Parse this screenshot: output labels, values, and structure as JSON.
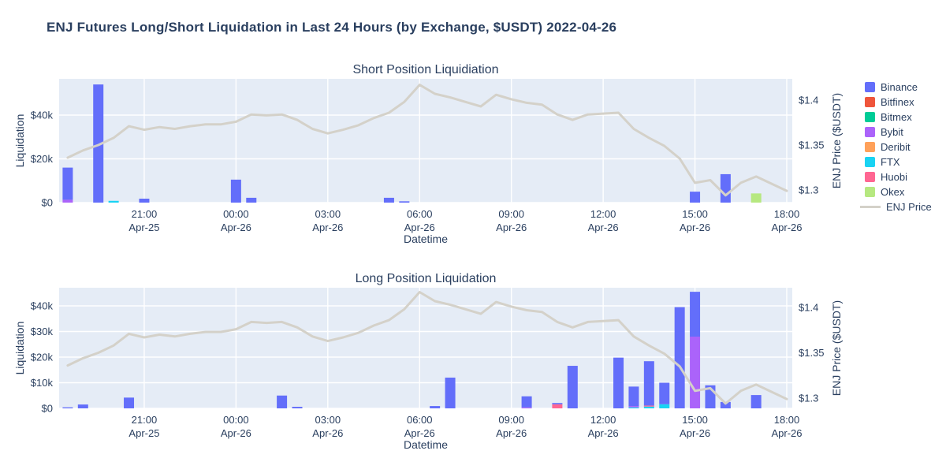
{
  "title": "ENJ Futures Long/Short Liquidation in Last 24 Hours (by Exchange, $USDT) 2022-04-26",
  "colors": {
    "background": "#ffffff",
    "plot_bg": "#E5ECF6",
    "grid": "#ffffff",
    "text": "#2a3f5f",
    "price_line": "#D4D1C9",
    "exchanges": {
      "Binance": "#636EFA",
      "Bitfinex": "#EF553B",
      "Bitmex": "#00CC96",
      "Bybit": "#AB63FA",
      "Deribit": "#FFA15A",
      "FTX": "#19D3F3",
      "Huobi": "#FF6692",
      "Okex": "#B6E880"
    }
  },
  "legend": {
    "position": "right",
    "entries": [
      {
        "label": "Binance",
        "color": "#636EFA",
        "marker": "square"
      },
      {
        "label": "Bitfinex",
        "color": "#EF553B",
        "marker": "square"
      },
      {
        "label": "Bitmex",
        "color": "#00CC96",
        "marker": "square"
      },
      {
        "label": "Bybit",
        "color": "#AB63FA",
        "marker": "square"
      },
      {
        "label": "Deribit",
        "color": "#FFA15A",
        "marker": "square"
      },
      {
        "label": "FTX",
        "color": "#19D3F3",
        "marker": "square"
      },
      {
        "label": "Huobi",
        "color": "#FF6692",
        "marker": "square"
      },
      {
        "label": "Okex",
        "color": "#B6E880",
        "marker": "square"
      },
      {
        "label": "ENJ Price",
        "color": "#D4D1C9",
        "marker": "line"
      }
    ]
  },
  "x_axis": {
    "title": "Datetime",
    "ticks": [
      {
        "time": "21:00",
        "date": "Apr-25"
      },
      {
        "time": "00:00",
        "date": "Apr-26"
      },
      {
        "time": "03:00",
        "date": "Apr-26"
      },
      {
        "time": "06:00",
        "date": "Apr-26"
      },
      {
        "time": "09:00",
        "date": "Apr-26"
      },
      {
        "time": "12:00",
        "date": "Apr-26"
      },
      {
        "time": "15:00",
        "date": "Apr-26"
      },
      {
        "time": "18:00",
        "date": "Apr-26"
      }
    ]
  },
  "y_right": {
    "title": "ENJ Price ($USDT)",
    "ticks": [
      {
        "label": "$1.3",
        "value": 1.3
      },
      {
        "label": "$1.35",
        "value": 1.35
      },
      {
        "label": "$1.4",
        "value": 1.4
      }
    ]
  },
  "chart_data": {
    "type": "stacked-bar+line",
    "date_shown": "2022-04-26",
    "units": "value_k = thousands of USDT liquidated per 30-min interval; p = ENJ price in USDT",
    "x_range": [
      "Apr-25 18:00",
      "Apr-26 18:00"
    ],
    "price_line": {
      "name": "ENJ Price",
      "points": [
        {
          "t": "18:30",
          "d": "Apr-25",
          "p": 1.336
        },
        {
          "t": "19:00",
          "d": "Apr-25",
          "p": 1.344
        },
        {
          "t": "19:30",
          "d": "Apr-25",
          "p": 1.35
        },
        {
          "t": "20:00",
          "d": "Apr-25",
          "p": 1.358
        },
        {
          "t": "20:30",
          "d": "Apr-25",
          "p": 1.371
        },
        {
          "t": "21:00",
          "d": "Apr-25",
          "p": 1.367
        },
        {
          "t": "21:30",
          "d": "Apr-25",
          "p": 1.37
        },
        {
          "t": "22:00",
          "d": "Apr-25",
          "p": 1.368
        },
        {
          "t": "22:30",
          "d": "Apr-25",
          "p": 1.371
        },
        {
          "t": "23:00",
          "d": "Apr-25",
          "p": 1.373
        },
        {
          "t": "23:30",
          "d": "Apr-25",
          "p": 1.373
        },
        {
          "t": "00:00",
          "d": "Apr-26",
          "p": 1.376
        },
        {
          "t": "00:30",
          "d": "Apr-26",
          "p": 1.384
        },
        {
          "t": "01:00",
          "d": "Apr-26",
          "p": 1.383
        },
        {
          "t": "01:30",
          "d": "Apr-26",
          "p": 1.384
        },
        {
          "t": "02:00",
          "d": "Apr-26",
          "p": 1.378
        },
        {
          "t": "02:30",
          "d": "Apr-26",
          "p": 1.368
        },
        {
          "t": "03:00",
          "d": "Apr-26",
          "p": 1.363
        },
        {
          "t": "03:30",
          "d": "Apr-26",
          "p": 1.367
        },
        {
          "t": "04:00",
          "d": "Apr-26",
          "p": 1.372
        },
        {
          "t": "04:30",
          "d": "Apr-26",
          "p": 1.38
        },
        {
          "t": "05:00",
          "d": "Apr-26",
          "p": 1.386
        },
        {
          "t": "05:30",
          "d": "Apr-26",
          "p": 1.398
        },
        {
          "t": "06:00",
          "d": "Apr-26",
          "p": 1.417
        },
        {
          "t": "06:30",
          "d": "Apr-26",
          "p": 1.407
        },
        {
          "t": "07:00",
          "d": "Apr-26",
          "p": 1.403
        },
        {
          "t": "07:30",
          "d": "Apr-26",
          "p": 1.398
        },
        {
          "t": "08:00",
          "d": "Apr-26",
          "p": 1.393
        },
        {
          "t": "08:30",
          "d": "Apr-26",
          "p": 1.406
        },
        {
          "t": "09:00",
          "d": "Apr-26",
          "p": 1.401
        },
        {
          "t": "09:30",
          "d": "Apr-26",
          "p": 1.397
        },
        {
          "t": "10:00",
          "d": "Apr-26",
          "p": 1.395
        },
        {
          "t": "10:30",
          "d": "Apr-26",
          "p": 1.384
        },
        {
          "t": "11:00",
          "d": "Apr-26",
          "p": 1.378
        },
        {
          "t": "11:30",
          "d": "Apr-26",
          "p": 1.384
        },
        {
          "t": "12:00",
          "d": "Apr-26",
          "p": 1.385
        },
        {
          "t": "12:30",
          "d": "Apr-26",
          "p": 1.386
        },
        {
          "t": "13:00",
          "d": "Apr-26",
          "p": 1.368
        },
        {
          "t": "13:30",
          "d": "Apr-26",
          "p": 1.358
        },
        {
          "t": "14:00",
          "d": "Apr-26",
          "p": 1.349
        },
        {
          "t": "14:30",
          "d": "Apr-26",
          "p": 1.335
        },
        {
          "t": "15:00",
          "d": "Apr-26",
          "p": 1.308
        },
        {
          "t": "15:30",
          "d": "Apr-26",
          "p": 1.311
        },
        {
          "t": "16:00",
          "d": "Apr-26",
          "p": 1.294
        },
        {
          "t": "16:30",
          "d": "Apr-26",
          "p": 1.308
        },
        {
          "t": "17:00",
          "d": "Apr-26",
          "p": 1.315
        },
        {
          "t": "17:30",
          "d": "Apr-26",
          "p": 1.307
        },
        {
          "t": "18:00",
          "d": "Apr-26",
          "p": 1.299
        }
      ]
    },
    "subplots": [
      {
        "id": "short",
        "title": "Short Position Liquidiation",
        "y_left": {
          "title": "Liquidation",
          "ticks": [
            {
              "label": "$0",
              "value": 0
            },
            {
              "label": "$20k",
              "value": 20
            },
            {
              "label": "$40k",
              "value": 40
            }
          ],
          "max_k": 56.6
        },
        "price_range": [
          1.286,
          1.424
        ],
        "bars": [
          {
            "time": "18:30",
            "date": "Apr-25",
            "segments": [
              {
                "exchange": "Bybit",
                "value_k": 1.3
              },
              {
                "exchange": "Binance",
                "value_k": 14.7
              }
            ]
          },
          {
            "time": "19:30",
            "date": "Apr-25",
            "segments": [
              {
                "exchange": "Binance",
                "value_k": 54.0
              }
            ]
          },
          {
            "time": "20:00",
            "date": "Apr-25",
            "segments": [
              {
                "exchange": "FTX",
                "value_k": 0.8
              }
            ]
          },
          {
            "time": "21:00",
            "date": "Apr-25",
            "segments": [
              {
                "exchange": "Binance",
                "value_k": 1.8
              }
            ]
          },
          {
            "time": "00:00",
            "date": "Apr-26",
            "segments": [
              {
                "exchange": "Binance",
                "value_k": 10.5
              }
            ]
          },
          {
            "time": "00:30",
            "date": "Apr-26",
            "segments": [
              {
                "exchange": "Binance",
                "value_k": 2.2
              }
            ]
          },
          {
            "time": "05:00",
            "date": "Apr-26",
            "segments": [
              {
                "exchange": "Binance",
                "value_k": 2.2
              }
            ]
          },
          {
            "time": "05:30",
            "date": "Apr-26",
            "segments": [
              {
                "exchange": "Binance",
                "value_k": 0.6
              }
            ]
          },
          {
            "time": "15:00",
            "date": "Apr-26",
            "segments": [
              {
                "exchange": "Binance",
                "value_k": 5.0
              }
            ]
          },
          {
            "time": "16:00",
            "date": "Apr-26",
            "segments": [
              {
                "exchange": "Binance",
                "value_k": 13.0
              }
            ]
          },
          {
            "time": "17:00",
            "date": "Apr-26",
            "segments": [
              {
                "exchange": "Okex",
                "value_k": 4.2
              }
            ]
          }
        ]
      },
      {
        "id": "long",
        "title": "Long Position Liquidation",
        "y_left": {
          "title": "Liquidation",
          "ticks": [
            {
              "label": "$0",
              "value": 0
            },
            {
              "label": "$10k",
              "value": 10
            },
            {
              "label": "$20k",
              "value": 20
            },
            {
              "label": "$30k",
              "value": 30
            },
            {
              "label": "$40k",
              "value": 40
            }
          ],
          "max_k": 47.1
        },
        "price_range": [
          1.289,
          1.422
        ],
        "bars": [
          {
            "time": "18:30",
            "date": "Apr-25",
            "segments": [
              {
                "exchange": "Binance",
                "value_k": 0.4
              }
            ]
          },
          {
            "time": "19:00",
            "date": "Apr-25",
            "segments": [
              {
                "exchange": "Binance",
                "value_k": 1.5
              }
            ]
          },
          {
            "time": "20:30",
            "date": "Apr-25",
            "segments": [
              {
                "exchange": "Binance",
                "value_k": 4.2
              }
            ]
          },
          {
            "time": "01:30",
            "date": "Apr-26",
            "segments": [
              {
                "exchange": "Binance",
                "value_k": 5.0
              }
            ]
          },
          {
            "time": "02:00",
            "date": "Apr-26",
            "segments": [
              {
                "exchange": "Binance",
                "value_k": 0.6
              }
            ]
          },
          {
            "time": "06:30",
            "date": "Apr-26",
            "segments": [
              {
                "exchange": "Binance",
                "value_k": 0.9
              }
            ]
          },
          {
            "time": "07:00",
            "date": "Apr-26",
            "segments": [
              {
                "exchange": "Binance",
                "value_k": 12.0
              }
            ]
          },
          {
            "time": "09:30",
            "date": "Apr-26",
            "segments": [
              {
                "exchange": "Bybit",
                "value_k": 0.4
              },
              {
                "exchange": "Binance",
                "value_k": 4.3
              }
            ]
          },
          {
            "time": "10:30",
            "date": "Apr-26",
            "segments": [
              {
                "exchange": "Huobi",
                "value_k": 1.6
              },
              {
                "exchange": "Binance",
                "value_k": 0.5
              }
            ]
          },
          {
            "time": "11:00",
            "date": "Apr-26",
            "segments": [
              {
                "exchange": "Binance",
                "value_k": 16.6
              }
            ]
          },
          {
            "time": "12:30",
            "date": "Apr-26",
            "segments": [
              {
                "exchange": "Binance",
                "value_k": 19.8
              }
            ]
          },
          {
            "time": "13:00",
            "date": "Apr-26",
            "segments": [
              {
                "exchange": "FTX",
                "value_k": 0.4
              },
              {
                "exchange": "Bybit",
                "value_k": 0.5
              },
              {
                "exchange": "Binance",
                "value_k": 7.6
              }
            ]
          },
          {
            "time": "13:30",
            "date": "Apr-26",
            "segments": [
              {
                "exchange": "FTX",
                "value_k": 0.7
              },
              {
                "exchange": "Huobi",
                "value_k": 0.4
              },
              {
                "exchange": "Binance",
                "value_k": 17.3
              }
            ]
          },
          {
            "time": "14:00",
            "date": "Apr-26",
            "segments": [
              {
                "exchange": "FTX",
                "value_k": 1.6
              },
              {
                "exchange": "Binance",
                "value_k": 8.4
              }
            ]
          },
          {
            "time": "14:30",
            "date": "Apr-26",
            "segments": [
              {
                "exchange": "Binance",
                "value_k": 39.5
              }
            ]
          },
          {
            "time": "15:00",
            "date": "Apr-26",
            "segments": [
              {
                "exchange": "Bybit",
                "value_k": 28.0
              },
              {
                "exchange": "Binance",
                "value_k": 17.5
              }
            ]
          },
          {
            "time": "15:30",
            "date": "Apr-26",
            "segments": [
              {
                "exchange": "Binance",
                "value_k": 9.0
              }
            ]
          },
          {
            "time": "16:00",
            "date": "Apr-26",
            "segments": [
              {
                "exchange": "Binance",
                "value_k": 2.5
              }
            ]
          },
          {
            "time": "17:00",
            "date": "Apr-26",
            "segments": [
              {
                "exchange": "Binance",
                "value_k": 5.2
              }
            ]
          }
        ]
      }
    ]
  }
}
